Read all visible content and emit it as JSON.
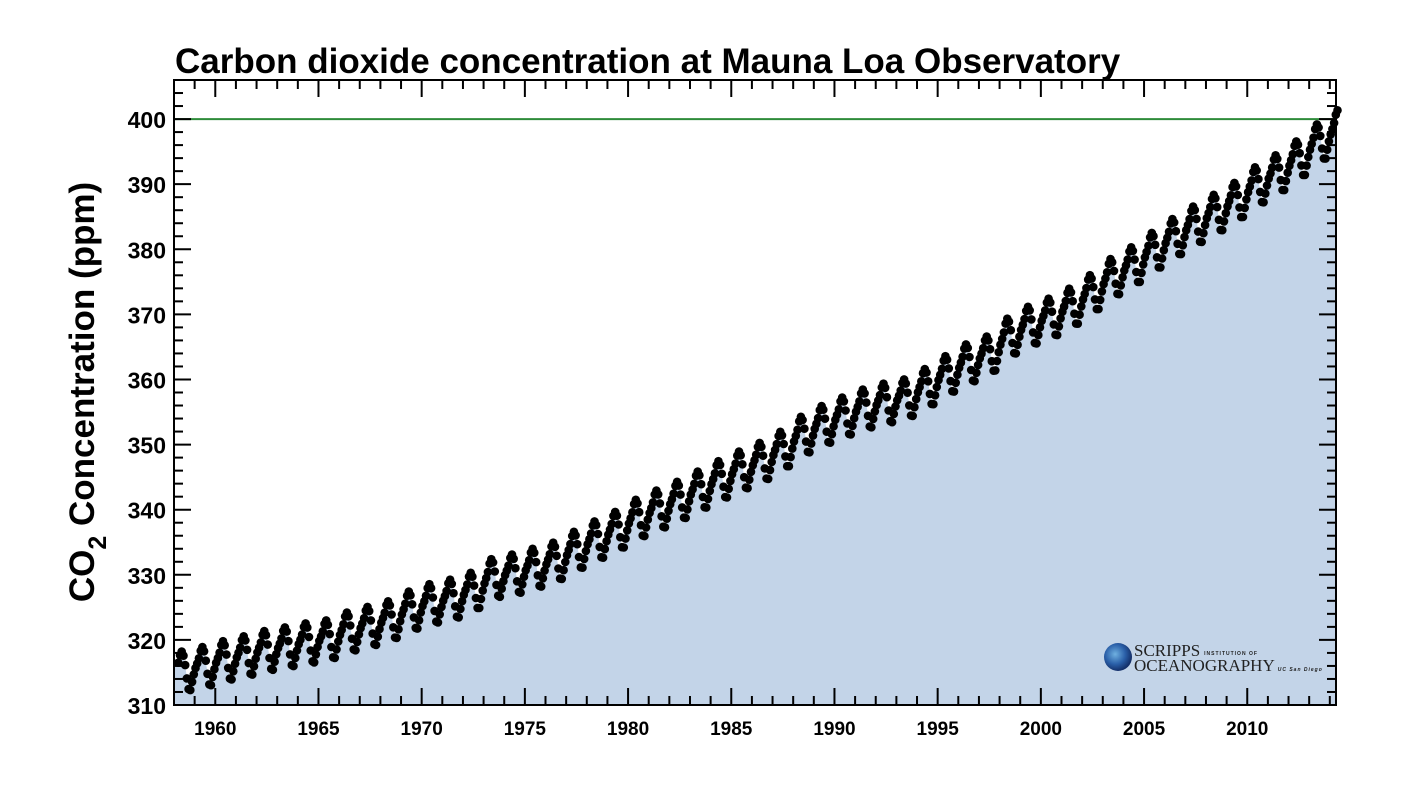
{
  "chart_data": {
    "type": "scatter",
    "title": "Carbon dioxide concentration at Mauna Loa Observatory",
    "ylabel_main": "CO",
    "ylabel_sub": "2",
    "ylabel_rest": " Concentration (ppm)",
    "xlim": [
      1958,
      2014.3
    ],
    "ylim": [
      310,
      406
    ],
    "x_ticks": [
      1960,
      1965,
      1970,
      1975,
      1980,
      1985,
      1990,
      1995,
      2000,
      2005,
      2010
    ],
    "y_ticks": [
      310,
      320,
      330,
      340,
      350,
      360,
      370,
      380,
      390,
      400
    ],
    "reference_line": {
      "y": 400,
      "color": "#2e8b3a"
    },
    "fill_color": "#c3d4e8",
    "marker_color": "#000000",
    "first_month": [
      1958,
      3
    ],
    "last_month": [
      2014,
      5
    ],
    "annual_means": {
      "1958": 315.3,
      "1959": 315.97,
      "1960": 316.91,
      "1961": 317.64,
      "1962": 318.45,
      "1963": 318.99,
      "1964": 319.62,
      "1965": 320.04,
      "1966": 321.38,
      "1967": 322.16,
      "1968": 323.04,
      "1969": 324.62,
      "1970": 325.68,
      "1971": 326.32,
      "1972": 327.45,
      "1973": 329.68,
      "1974": 330.18,
      "1975": 331.11,
      "1976": 332.04,
      "1977": 333.83,
      "1978": 335.4,
      "1979": 336.84,
      "1980": 338.75,
      "1981": 340.11,
      "1982": 341.45,
      "1983": 343.05,
      "1984": 344.65,
      "1985": 346.12,
      "1986": 347.42,
      "1987": 349.19,
      "1988": 351.57,
      "1989": 353.12,
      "1990": 354.39,
      "1991": 355.61,
      "1992": 356.45,
      "1993": 357.1,
      "1994": 358.83,
      "1995": 360.82,
      "1996": 362.61,
      "1997": 363.73,
      "1998": 366.7,
      "1999": 368.38,
      "2000": 369.55,
      "2001": 371.14,
      "2002": 373.28,
      "2003": 375.8,
      "2004": 377.52,
      "2005": 379.8,
      "2006": 381.9,
      "2007": 383.79,
      "2008": 385.6,
      "2009": 387.43,
      "2010": 389.9,
      "2011": 391.65,
      "2012": 393.85,
      "2013": 396.52,
      "2014": 398.6
    },
    "seasonal_cycle_ppm": [
      0.0,
      0.65,
      1.4,
      2.5,
      3.0,
      2.3,
      0.8,
      -1.3,
      -3.0,
      -3.2,
      -2.0,
      -0.9
    ]
  },
  "logo": {
    "line1": "SCRIPPS",
    "line1_small": "INSTITUTION OF",
    "line2": "OCEANOGRAPHY",
    "line2_small": "UC San Diego"
  }
}
